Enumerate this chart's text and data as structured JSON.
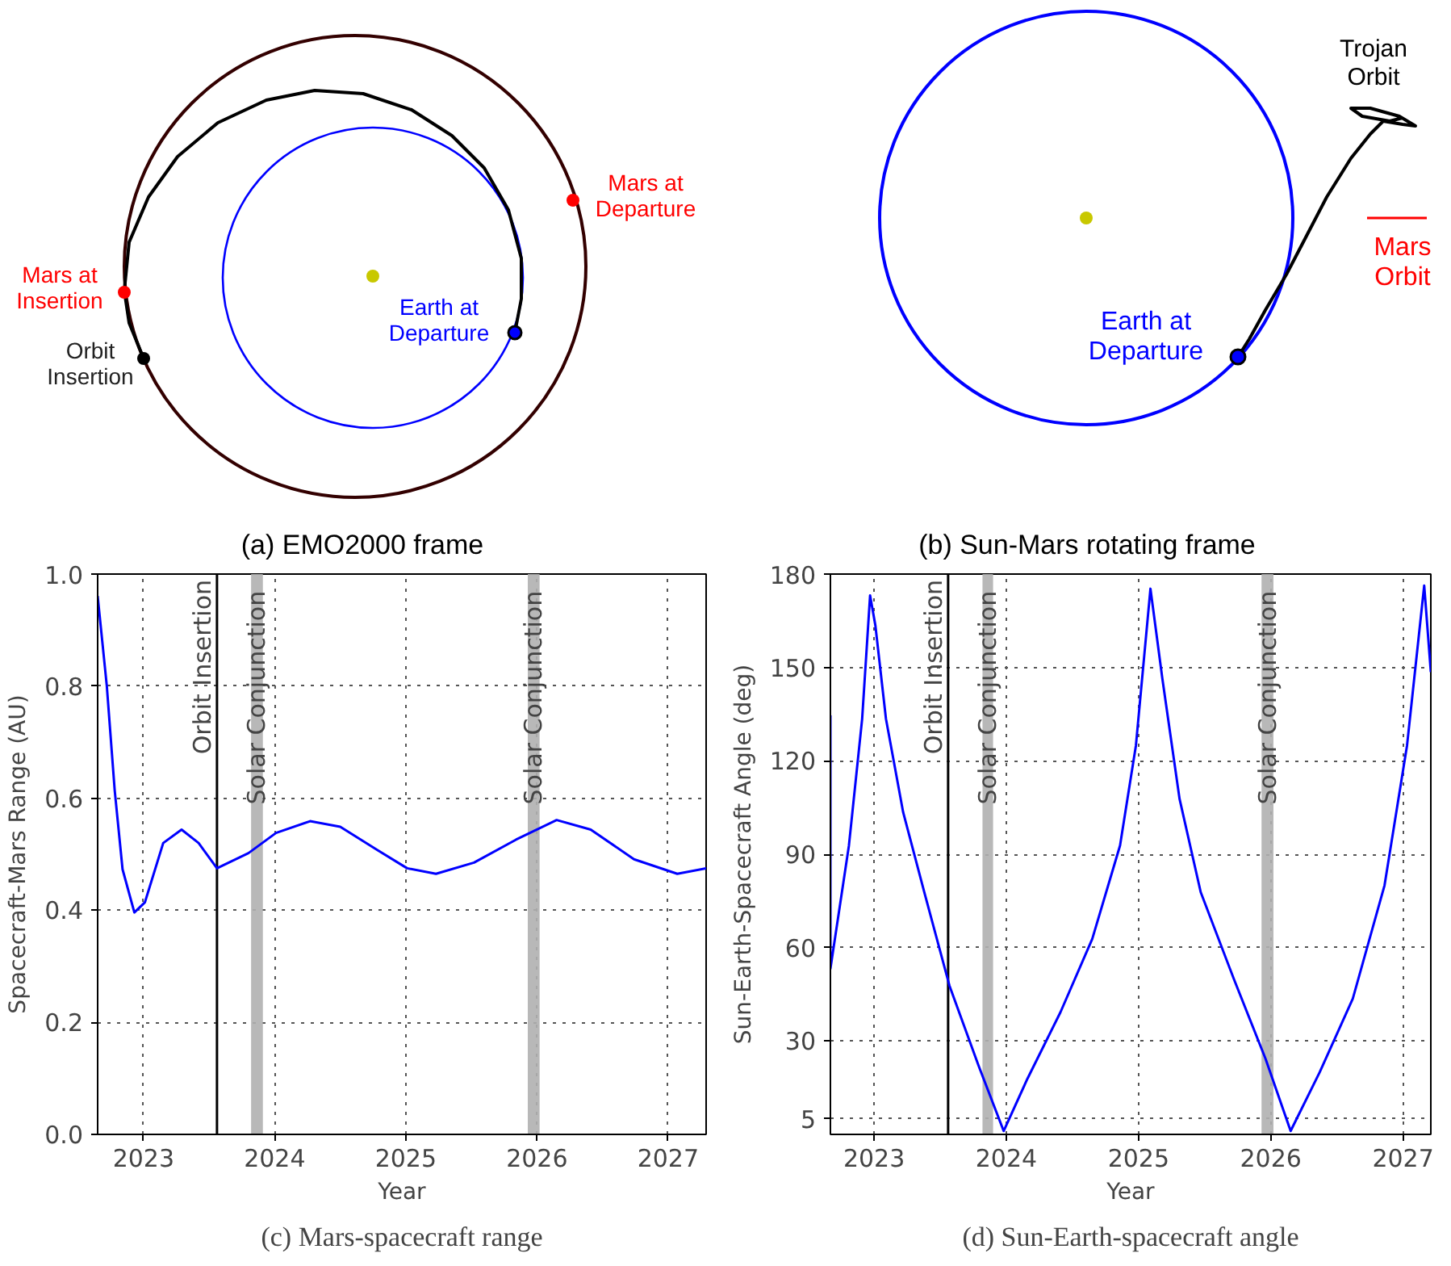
{
  "chart_data": [
    {
      "type": "other",
      "title": "(a) EMO2000 frame",
      "annotations": [
        "Mars at\nDeparture",
        "Mars at\nInsertion",
        "Orbit\nInsertion",
        "Earth at\nDeparture"
      ]
    },
    {
      "type": "other",
      "title": "(b) Sun-Mars rotating frame",
      "annotations": [
        "Trojan\nOrbit",
        "Earth at\nDeparture",
        "Mars\nOrbit"
      ]
    },
    {
      "type": "line",
      "title": "(c) Mars-spacecraft range",
      "xlabel": "Year",
      "ylabel": "Spacecraft-Mars Range (AU)",
      "grid": true,
      "line_style": "solid",
      "xlim": [
        2022.65,
        2027.29
      ],
      "xticks": [
        2023,
        2024,
        2025,
        2026,
        2027
      ],
      "ylim": [
        0,
        1
      ],
      "yticks": [
        {
          "value": 0,
          "label": "0.0"
        },
        0.2,
        0.4,
        0.6,
        0.8,
        {
          "value": 1,
          "label": "1.0"
        }
      ],
      "ref_lines": [
        {
          "axis": "x",
          "value": 2023.56,
          "label": "Orbit Insertion",
          "color": "#000000"
        }
      ],
      "bands": [
        {
          "axis": "x",
          "from": 2023.82,
          "to": 2023.91,
          "label": "Solar Conjunction",
          "color": "#b0b0b0"
        },
        {
          "axis": "x",
          "from": 2025.93,
          "to": 2026.02,
          "label": "Solar Conjunction",
          "color": "#b0b0b0"
        }
      ],
      "series": [
        {
          "color": "#0000ff",
          "x": [
            2022.65,
            2022.72,
            2022.78,
            2022.84,
            2022.93,
            2023.01,
            2023.15,
            2023.29,
            2023.42,
            2023.56,
            2023.8,
            2024.01,
            2024.27,
            2024.5,
            2024.78,
            2025.01,
            2025.23,
            2025.52,
            2025.84,
            2026.15,
            2026.41,
            2026.74,
            2027.07,
            2027.29
          ],
          "values": [
            0.961,
            0.8,
            0.614,
            0.473,
            0.396,
            0.414,
            0.52,
            0.544,
            0.52,
            0.475,
            0.502,
            0.538,
            0.559,
            0.549,
            0.508,
            0.475,
            0.465,
            0.485,
            0.526,
            0.561,
            0.544,
            0.491,
            0.465,
            0.475
          ]
        }
      ]
    },
    {
      "type": "line",
      "title": "(d) Sun-Earth-spacecraft angle",
      "xlabel": "Year",
      "ylabel": "Sun-Earth-Spacecraft Angle (deg)",
      "grid": true,
      "line_style": "solid",
      "xlim": [
        2022.67,
        2027.21
      ],
      "xticks": [
        2023,
        2024,
        2025,
        2026,
        2027
      ],
      "ylim": [
        0,
        180
      ],
      "yticks": [
        5,
        30,
        60,
        90,
        120,
        150,
        180
      ],
      "ref_lines": [
        {
          "axis": "x",
          "value": 2023.56,
          "label": "Orbit Insertion",
          "color": "#000000"
        }
      ],
      "bands": [
        {
          "axis": "x",
          "from": 2023.82,
          "to": 2023.9,
          "label": "Solar Conjunction",
          "color": "#b0b0b0"
        },
        {
          "axis": "x",
          "from": 2025.93,
          "to": 2026.02,
          "label": "Solar Conjunction",
          "color": "#b0b0b0"
        }
      ],
      "series": [
        {
          "color": "#0000ff",
          "x": [
            2022.67,
            2022.67,
            2022.81,
            2022.91,
            2022.97,
            2023.01,
            2023.09,
            2023.22,
            2023.38,
            2023.57,
            2023.79,
            2023.98,
            2024.16,
            2024.41,
            2024.65,
            2024.86,
            2024.98,
            2025.09,
            2025.18,
            2025.31,
            2025.47,
            2025.72,
            2025.96,
            2026.15,
            2026.37,
            2026.62,
            2026.86,
            2027.03,
            2027.16,
            2027.21
          ],
          "values": [
            134.6,
            53.2,
            92.8,
            133.5,
            173.1,
            163.5,
            133.5,
            103.5,
            77.8,
            47.8,
            22.1,
            1.1,
            17.9,
            39.3,
            62.8,
            92.8,
            124.9,
            175.3,
            146.4,
            107.8,
            77.8,
            50.0,
            24.3,
            1.1,
            20.0,
            43.6,
            80.0,
            124.9,
            176.3,
            148.5
          ]
        }
      ]
    }
  ]
}
